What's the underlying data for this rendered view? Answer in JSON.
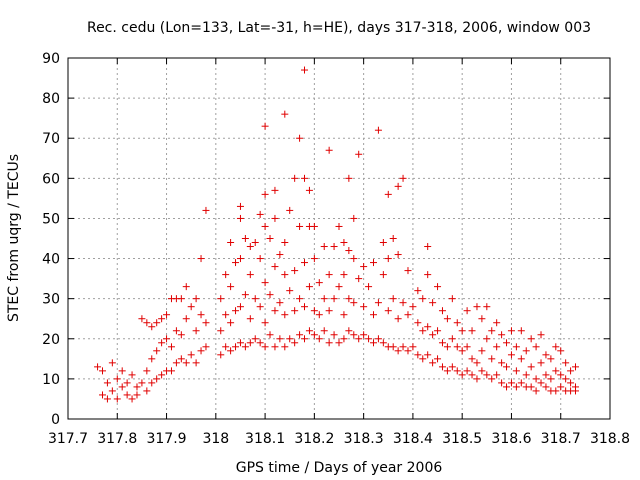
{
  "chart_data": {
    "type": "scatter",
    "title": "Rec. cedu (Lon=133, Lat=-31, h=HE), days 317-318, 2006, window 003",
    "xlabel": "GPS time / Days of year 2006",
    "ylabel": "STEC from uqrg / TECUs",
    "xlim": [
      317.7,
      318.8
    ],
    "ylim": [
      0,
      90
    ],
    "x_ticks": [
      "317.7",
      "317.8",
      "317.9",
      "318",
      "318.1",
      "318.2",
      "318.3",
      "318.4",
      "318.5",
      "318.6",
      "318.7",
      "318.8"
    ],
    "y_ticks": [
      "0",
      "10",
      "20",
      "30",
      "40",
      "50",
      "60",
      "70",
      "80",
      "90"
    ],
    "grid": true,
    "marker": "plus",
    "color": "#e00000",
    "points": [
      [
        317.76,
        13
      ],
      [
        317.77,
        6
      ],
      [
        317.77,
        12
      ],
      [
        317.78,
        5
      ],
      [
        317.78,
        9
      ],
      [
        317.79,
        14
      ],
      [
        317.79,
        7
      ],
      [
        317.8,
        10
      ],
      [
        317.8,
        5
      ],
      [
        317.81,
        8
      ],
      [
        317.81,
        12
      ],
      [
        317.82,
        6
      ],
      [
        317.82,
        9
      ],
      [
        317.83,
        5
      ],
      [
        317.83,
        11
      ],
      [
        317.84,
        8
      ],
      [
        317.84,
        6
      ],
      [
        317.85,
        9
      ],
      [
        317.85,
        25
      ],
      [
        317.86,
        7
      ],
      [
        317.86,
        12
      ],
      [
        317.86,
        24
      ],
      [
        317.87,
        9
      ],
      [
        317.87,
        15
      ],
      [
        317.87,
        23
      ],
      [
        317.88,
        10
      ],
      [
        317.88,
        17
      ],
      [
        317.88,
        24
      ],
      [
        317.89,
        11
      ],
      [
        317.89,
        19
      ],
      [
        317.89,
        25
      ],
      [
        317.9,
        12
      ],
      [
        317.9,
        20
      ],
      [
        317.9,
        26
      ],
      [
        317.91,
        12
      ],
      [
        317.91,
        18
      ],
      [
        317.91,
        30
      ],
      [
        317.92,
        14
      ],
      [
        317.92,
        22
      ],
      [
        317.92,
        30
      ],
      [
        317.93,
        15
      ],
      [
        317.93,
        21
      ],
      [
        317.93,
        30
      ],
      [
        317.94,
        14
      ],
      [
        317.94,
        25
      ],
      [
        317.94,
        33
      ],
      [
        317.95,
        16
      ],
      [
        317.95,
        28
      ],
      [
        317.96,
        14
      ],
      [
        317.96,
        22
      ],
      [
        317.96,
        30
      ],
      [
        317.97,
        17
      ],
      [
        317.97,
        26
      ],
      [
        317.97,
        40
      ],
      [
        317.98,
        18
      ],
      [
        317.98,
        24
      ],
      [
        317.98,
        52
      ],
      [
        318.01,
        16
      ],
      [
        318.01,
        22
      ],
      [
        318.01,
        30
      ],
      [
        318.02,
        18
      ],
      [
        318.02,
        26
      ],
      [
        318.02,
        36
      ],
      [
        318.03,
        17
      ],
      [
        318.03,
        24
      ],
      [
        318.03,
        33
      ],
      [
        318.03,
        44
      ],
      [
        318.04,
        18
      ],
      [
        318.04,
        27
      ],
      [
        318.04,
        39
      ],
      [
        318.05,
        19
      ],
      [
        318.05,
        28
      ],
      [
        318.05,
        40
      ],
      [
        318.05,
        50
      ],
      [
        318.05,
        53
      ],
      [
        318.06,
        18
      ],
      [
        318.06,
        31
      ],
      [
        318.06,
        45
      ],
      [
        318.07,
        19
      ],
      [
        318.07,
        25
      ],
      [
        318.07,
        36
      ],
      [
        318.07,
        43
      ],
      [
        318.08,
        20
      ],
      [
        318.08,
        30
      ],
      [
        318.08,
        44
      ],
      [
        318.09,
        19
      ],
      [
        318.09,
        28
      ],
      [
        318.09,
        40
      ],
      [
        318.09,
        51
      ],
      [
        318.1,
        18
      ],
      [
        318.1,
        24
      ],
      [
        318.1,
        34
      ],
      [
        318.1,
        48
      ],
      [
        318.1,
        56
      ],
      [
        318.1,
        73
      ],
      [
        318.11,
        21
      ],
      [
        318.11,
        31
      ],
      [
        318.11,
        45
      ],
      [
        318.12,
        18
      ],
      [
        318.12,
        27
      ],
      [
        318.12,
        38
      ],
      [
        318.12,
        50
      ],
      [
        318.12,
        57
      ],
      [
        318.13,
        20
      ],
      [
        318.13,
        29
      ],
      [
        318.13,
        41
      ],
      [
        318.14,
        18
      ],
      [
        318.14,
        26
      ],
      [
        318.14,
        36
      ],
      [
        318.14,
        44
      ],
      [
        318.14,
        76
      ],
      [
        318.15,
        20
      ],
      [
        318.15,
        32
      ],
      [
        318.15,
        52
      ],
      [
        318.16,
        19
      ],
      [
        318.16,
        27
      ],
      [
        318.16,
        37
      ],
      [
        318.16,
        60
      ],
      [
        318.17,
        21
      ],
      [
        318.17,
        30
      ],
      [
        318.17,
        48
      ],
      [
        318.17,
        70
      ],
      [
        318.18,
        20
      ],
      [
        318.18,
        28
      ],
      [
        318.18,
        39
      ],
      [
        318.18,
        60
      ],
      [
        318.18,
        87
      ],
      [
        318.19,
        22
      ],
      [
        318.19,
        33
      ],
      [
        318.19,
        48
      ],
      [
        318.19,
        57
      ],
      [
        318.2,
        21
      ],
      [
        318.2,
        27
      ],
      [
        318.2,
        40
      ],
      [
        318.2,
        48
      ],
      [
        318.21,
        20
      ],
      [
        318.21,
        26
      ],
      [
        318.21,
        34
      ],
      [
        318.22,
        22
      ],
      [
        318.22,
        30
      ],
      [
        318.22,
        43
      ],
      [
        318.23,
        19
      ],
      [
        318.23,
        27
      ],
      [
        318.23,
        36
      ],
      [
        318.23,
        67
      ],
      [
        318.24,
        21
      ],
      [
        318.24,
        30
      ],
      [
        318.24,
        43
      ],
      [
        318.25,
        19
      ],
      [
        318.25,
        33
      ],
      [
        318.25,
        48
      ],
      [
        318.26,
        20
      ],
      [
        318.26,
        26
      ],
      [
        318.26,
        36
      ],
      [
        318.26,
        44
      ],
      [
        318.27,
        22
      ],
      [
        318.27,
        30
      ],
      [
        318.27,
        42
      ],
      [
        318.27,
        60
      ],
      [
        318.28,
        21
      ],
      [
        318.28,
        29
      ],
      [
        318.28,
        40
      ],
      [
        318.28,
        50
      ],
      [
        318.29,
        20
      ],
      [
        318.29,
        35
      ],
      [
        318.29,
        66
      ],
      [
        318.3,
        21
      ],
      [
        318.3,
        28
      ],
      [
        318.3,
        38
      ],
      [
        318.31,
        20
      ],
      [
        318.31,
        33
      ],
      [
        318.32,
        19
      ],
      [
        318.32,
        26
      ],
      [
        318.32,
        39
      ],
      [
        318.33,
        20
      ],
      [
        318.33,
        29
      ],
      [
        318.33,
        72
      ],
      [
        318.34,
        19
      ],
      [
        318.34,
        36
      ],
      [
        318.34,
        44
      ],
      [
        318.35,
        18
      ],
      [
        318.35,
        27
      ],
      [
        318.35,
        40
      ],
      [
        318.35,
        56
      ],
      [
        318.36,
        18
      ],
      [
        318.36,
        30
      ],
      [
        318.36,
        45
      ],
      [
        318.37,
        17
      ],
      [
        318.37,
        25
      ],
      [
        318.37,
        41
      ],
      [
        318.37,
        58
      ],
      [
        318.38,
        18
      ],
      [
        318.38,
        29
      ],
      [
        318.38,
        60
      ],
      [
        318.39,
        17
      ],
      [
        318.39,
        26
      ],
      [
        318.39,
        37
      ],
      [
        318.4,
        18
      ],
      [
        318.4,
        28
      ],
      [
        318.41,
        16
      ],
      [
        318.41,
        24
      ],
      [
        318.41,
        32
      ],
      [
        318.42,
        15
      ],
      [
        318.42,
        22
      ],
      [
        318.42,
        30
      ],
      [
        318.43,
        16
      ],
      [
        318.43,
        23
      ],
      [
        318.43,
        36
      ],
      [
        318.43,
        43
      ],
      [
        318.44,
        14
      ],
      [
        318.44,
        21
      ],
      [
        318.44,
        29
      ],
      [
        318.45,
        15
      ],
      [
        318.45,
        22
      ],
      [
        318.45,
        33
      ],
      [
        318.46,
        13
      ],
      [
        318.46,
        19
      ],
      [
        318.46,
        27
      ],
      [
        318.47,
        12
      ],
      [
        318.47,
        18
      ],
      [
        318.47,
        25
      ],
      [
        318.48,
        13
      ],
      [
        318.48,
        20
      ],
      [
        318.48,
        30
      ],
      [
        318.49,
        12
      ],
      [
        318.49,
        18
      ],
      [
        318.49,
        24
      ],
      [
        318.5,
        11
      ],
      [
        318.5,
        17
      ],
      [
        318.5,
        22
      ],
      [
        318.51,
        12
      ],
      [
        318.51,
        18
      ],
      [
        318.51,
        27
      ],
      [
        318.52,
        11
      ],
      [
        318.52,
        15
      ],
      [
        318.52,
        22
      ],
      [
        318.53,
        10
      ],
      [
        318.53,
        14
      ],
      [
        318.53,
        28
      ],
      [
        318.54,
        12
      ],
      [
        318.54,
        17
      ],
      [
        318.54,
        25
      ],
      [
        318.55,
        11
      ],
      [
        318.55,
        20
      ],
      [
        318.55,
        28
      ],
      [
        318.56,
        10
      ],
      [
        318.56,
        15
      ],
      [
        318.56,
        22
      ],
      [
        318.57,
        11
      ],
      [
        318.57,
        18
      ],
      [
        318.57,
        24
      ],
      [
        318.58,
        9
      ],
      [
        318.58,
        14
      ],
      [
        318.58,
        21
      ],
      [
        318.59,
        8
      ],
      [
        318.59,
        13
      ],
      [
        318.59,
        19
      ],
      [
        318.6,
        9
      ],
      [
        318.6,
        16
      ],
      [
        318.6,
        22
      ],
      [
        318.61,
        8
      ],
      [
        318.61,
        12
      ],
      [
        318.61,
        18
      ],
      [
        318.62,
        9
      ],
      [
        318.62,
        15
      ],
      [
        318.62,
        22
      ],
      [
        318.63,
        8
      ],
      [
        318.63,
        11
      ],
      [
        318.63,
        17
      ],
      [
        318.64,
        8
      ],
      [
        318.64,
        13
      ],
      [
        318.64,
        20
      ],
      [
        318.65,
        7
      ],
      [
        318.65,
        10
      ],
      [
        318.65,
        18
      ],
      [
        318.66,
        9
      ],
      [
        318.66,
        14
      ],
      [
        318.66,
        21
      ],
      [
        318.67,
        8
      ],
      [
        318.67,
        11
      ],
      [
        318.67,
        16
      ],
      [
        318.68,
        7
      ],
      [
        318.68,
        10
      ],
      [
        318.68,
        15
      ],
      [
        318.69,
        7
      ],
      [
        318.69,
        12
      ],
      [
        318.69,
        18
      ],
      [
        318.7,
        8
      ],
      [
        318.7,
        11
      ],
      [
        318.7,
        17
      ],
      [
        318.71,
        7
      ],
      [
        318.71,
        10
      ],
      [
        318.71,
        14
      ],
      [
        318.72,
        7
      ],
      [
        318.72,
        9
      ],
      [
        318.72,
        12
      ],
      [
        318.73,
        7
      ],
      [
        318.73,
        8
      ],
      [
        318.73,
        13
      ]
    ]
  }
}
